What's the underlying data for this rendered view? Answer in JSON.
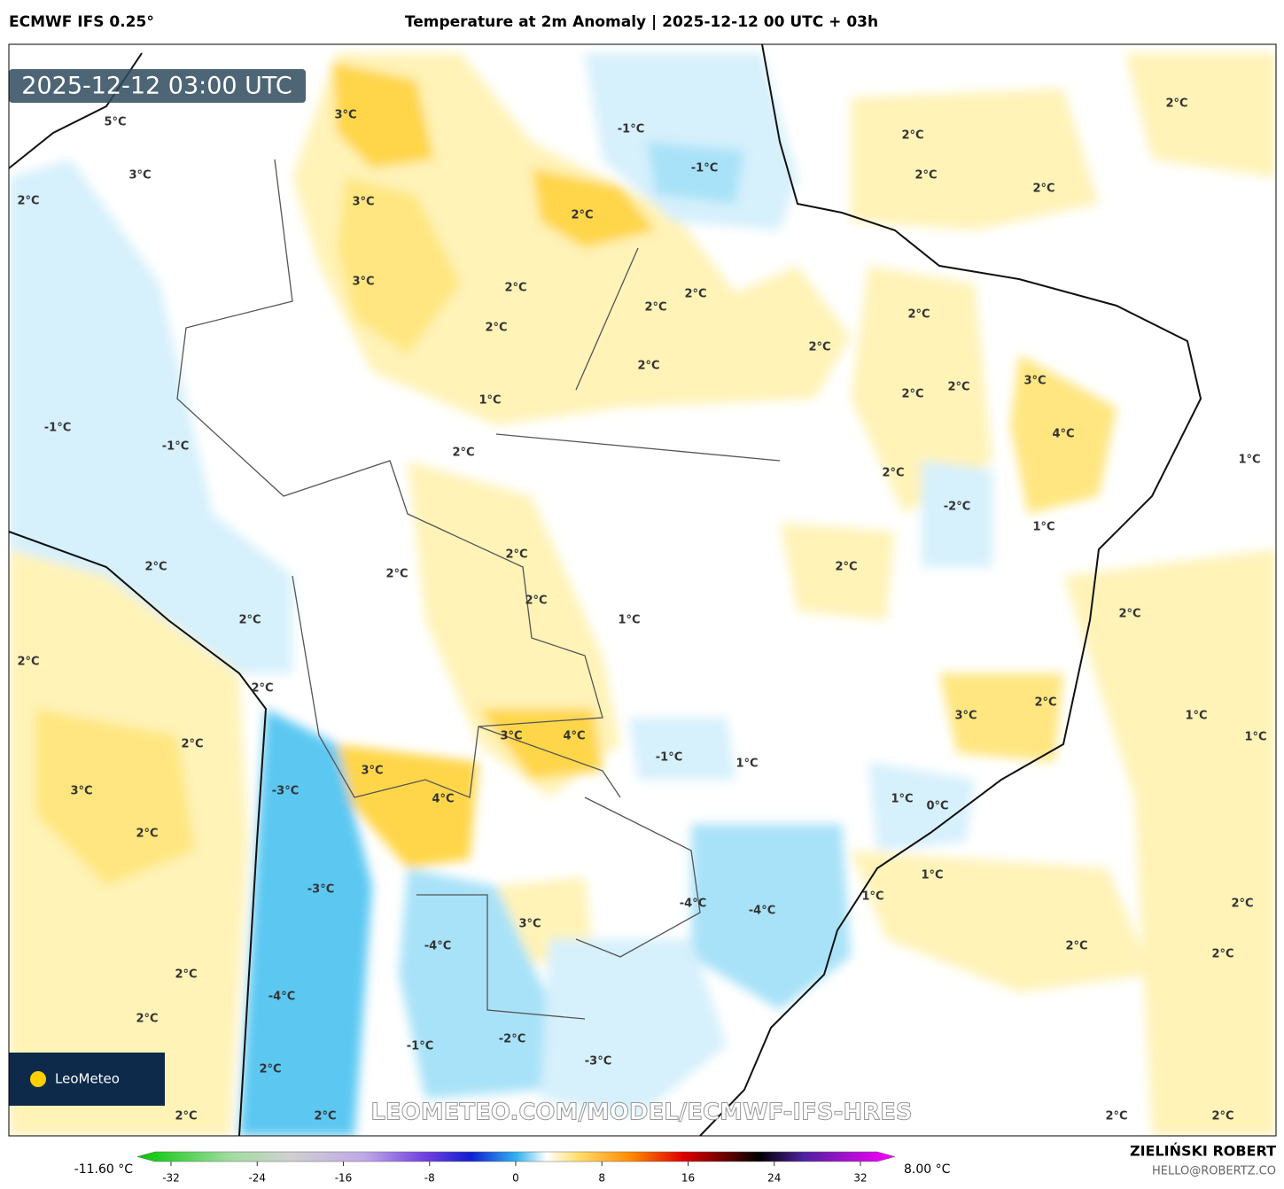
{
  "header": {
    "model": "ECMWF IFS 0.25°",
    "title": "Temperature at 2m Anomaly | 2025-12-12 00 UTC + 03h",
    "timestamp": "2025-12-12 03:00 UTC"
  },
  "map": {
    "labels": [
      "5°C",
      "3°C",
      "3°C",
      "2°C",
      "3°C",
      "-1°C",
      "-1°C",
      "2°C",
      "2°C",
      "2°C",
      "2°C",
      "2°C",
      "3°C",
      "2°C",
      "2°C",
      "2°C",
      "2°C",
      "2°C",
      "2°C",
      "2°C",
      "2°C",
      "2°C",
      "3°C",
      "1°C",
      "-1°C",
      "4°C",
      "-1°C",
      "2°C",
      "2°C",
      "1°C",
      "-2°C",
      "1°C",
      "2°C",
      "2°C",
      "2°C",
      "2°C",
      "2°C",
      "2°C",
      "1°C",
      "2°C",
      "2°C",
      "2°C",
      "2°C",
      "3°C",
      "1°C",
      "1°C",
      "2°C",
      "3°C",
      "4°C",
      "-1°C",
      "1°C",
      "3°C",
      "3°C",
      "-3°C",
      "4°C",
      "1°C",
      "0°C",
      "2°C",
      "1°C",
      "-3°C",
      "1°C",
      "-4°C",
      "-4°C",
      "2°C",
      "3°C",
      "-4°C",
      "2°C",
      "2°C",
      "2°C",
      "-4°C",
      "2°C",
      "-2°C",
      "-1°C",
      "-3°C",
      "2°C",
      "2°C",
      "2°C",
      "2°C",
      "2°C"
    ],
    "watermark": "LEOMETEO.COM/MODEL/ECMWF-IFS-HRES",
    "logo": "LeoMeteo"
  },
  "colorbar": {
    "min_label": "-11.60 °C",
    "max_label": "8.00 °C",
    "ticks": [
      -32,
      -24,
      -16,
      -8,
      0,
      8,
      16,
      24,
      32
    ]
  },
  "footer": {
    "author": "ZIELIŃSKI ROBERT",
    "email": "HELLO@ROBERTZ.CO"
  }
}
